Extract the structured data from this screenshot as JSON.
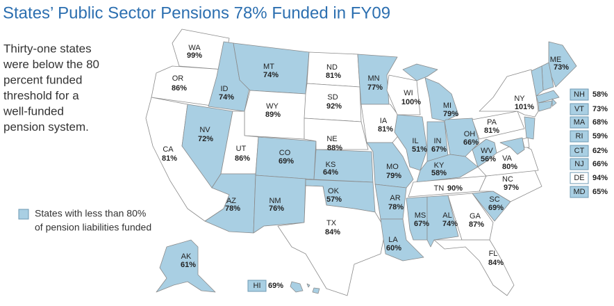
{
  "header": {
    "title": "States’ Public Sector Pensions 78% Funded in FY09"
  },
  "note": {
    "lines": [
      "Thirty-one states",
      "were below the 80",
      "percent funded",
      "threshold for a",
      "well-funded",
      "pension system."
    ]
  },
  "legend": {
    "lines": [
      "States with less than 80%",
      "of pension liabilities funded"
    ],
    "color": "#a9cfe3"
  },
  "map": {
    "highlight_color": "#a9cfe3",
    "plain_color": "#ffffff",
    "states": [
      {
        "code": "WA",
        "value": 99,
        "label": "99%",
        "color": "#ffffff"
      },
      {
        "code": "OR",
        "value": 86,
        "label": "86%",
        "color": "#ffffff"
      },
      {
        "code": "CA",
        "value": 81,
        "label": "81%",
        "color": "#ffffff"
      },
      {
        "code": "NV",
        "value": 72,
        "label": "72%",
        "color": "#a9cfe3"
      },
      {
        "code": "ID",
        "value": 74,
        "label": "74%",
        "color": "#a9cfe3"
      },
      {
        "code": "MT",
        "value": 74,
        "label": "74%",
        "color": "#a9cfe3"
      },
      {
        "code": "WY",
        "value": 89,
        "label": "89%",
        "color": "#ffffff"
      },
      {
        "code": "UT",
        "value": 86,
        "label": "86%",
        "color": "#ffffff"
      },
      {
        "code": "AZ",
        "value": 78,
        "label": "78%",
        "color": "#a9cfe3"
      },
      {
        "code": "CO",
        "value": 69,
        "label": "69%",
        "color": "#a9cfe3"
      },
      {
        "code": "NM",
        "value": 76,
        "label": "76%",
        "color": "#a9cfe3"
      },
      {
        "code": "ND",
        "value": 81,
        "label": "81%",
        "color": "#ffffff"
      },
      {
        "code": "SD",
        "value": 92,
        "label": "92%",
        "color": "#ffffff"
      },
      {
        "code": "NE",
        "value": 88,
        "label": "88%",
        "color": "#ffffff"
      },
      {
        "code": "KS",
        "value": 64,
        "label": "64%",
        "color": "#a9cfe3"
      },
      {
        "code": "OK",
        "value": 57,
        "label": "57%",
        "color": "#a9cfe3"
      },
      {
        "code": "TX",
        "value": 84,
        "label": "84%",
        "color": "#ffffff"
      },
      {
        "code": "MN",
        "value": 77,
        "label": "77%",
        "color": "#a9cfe3"
      },
      {
        "code": "IA",
        "value": 81,
        "label": "81%",
        "color": "#ffffff"
      },
      {
        "code": "MO",
        "value": 79,
        "label": "79%",
        "color": "#a9cfe3"
      },
      {
        "code": "AR",
        "value": 78,
        "label": "78%",
        "color": "#a9cfe3"
      },
      {
        "code": "LA",
        "value": 60,
        "label": "60%",
        "color": "#a9cfe3"
      },
      {
        "code": "WI",
        "value": 100,
        "label": "100%",
        "color": "#ffffff"
      },
      {
        "code": "IL",
        "value": 51,
        "label": "51%",
        "color": "#a9cfe3"
      },
      {
        "code": "MI",
        "value": 79,
        "label": "79%",
        "color": "#a9cfe3"
      },
      {
        "code": "IN",
        "value": 67,
        "label": "67%",
        "color": "#a9cfe3"
      },
      {
        "code": "OH",
        "value": 66,
        "label": "66%",
        "color": "#a9cfe3"
      },
      {
        "code": "KY",
        "value": 58,
        "label": "58%",
        "color": "#a9cfe3"
      },
      {
        "code": "TN",
        "value": 90,
        "label": "90%",
        "color": "#ffffff"
      },
      {
        "code": "MS",
        "value": 67,
        "label": "67%",
        "color": "#a9cfe3"
      },
      {
        "code": "AL",
        "value": 74,
        "label": "74%",
        "color": "#a9cfe3"
      },
      {
        "code": "GA",
        "value": 87,
        "label": "87%",
        "color": "#ffffff"
      },
      {
        "code": "FL",
        "value": 84,
        "label": "84%",
        "color": "#ffffff"
      },
      {
        "code": "SC",
        "value": 69,
        "label": "69%",
        "color": "#a9cfe3"
      },
      {
        "code": "NC",
        "value": 97,
        "label": "97%",
        "color": "#ffffff"
      },
      {
        "code": "VA",
        "value": 80,
        "label": "80%",
        "color": "#ffffff"
      },
      {
        "code": "WV",
        "value": 56,
        "label": "56%",
        "color": "#a9cfe3"
      },
      {
        "code": "PA",
        "value": 81,
        "label": "81%",
        "color": "#ffffff"
      },
      {
        "code": "NY",
        "value": 101,
        "label": "101%",
        "color": "#ffffff"
      },
      {
        "code": "ME",
        "value": 73,
        "label": "73%",
        "color": "#a9cfe3"
      },
      {
        "code": "AK",
        "value": 61,
        "label": "61%",
        "color": "#a9cfe3"
      },
      {
        "code": "HI",
        "value": 69,
        "label": "69%",
        "color": "#a9cfe3"
      }
    ],
    "small_states": [
      {
        "code": "NH",
        "value": 58,
        "label": "58%",
        "color": "#a9cfe3"
      },
      {
        "code": "VT",
        "value": 73,
        "label": "73%",
        "color": "#a9cfe3"
      },
      {
        "code": "MA",
        "value": 68,
        "label": "68%",
        "color": "#a9cfe3"
      },
      {
        "code": "RI",
        "value": 59,
        "label": "59%",
        "color": "#a9cfe3"
      },
      {
        "code": "CT",
        "value": 62,
        "label": "62%",
        "color": "#a9cfe3"
      },
      {
        "code": "NJ",
        "value": 66,
        "label": "66%",
        "color": "#a9cfe3"
      },
      {
        "code": "DE",
        "value": 94,
        "label": "94%",
        "color": "#ffffff"
      },
      {
        "code": "MD",
        "value": 65,
        "label": "65%",
        "color": "#a9cfe3"
      }
    ]
  }
}
